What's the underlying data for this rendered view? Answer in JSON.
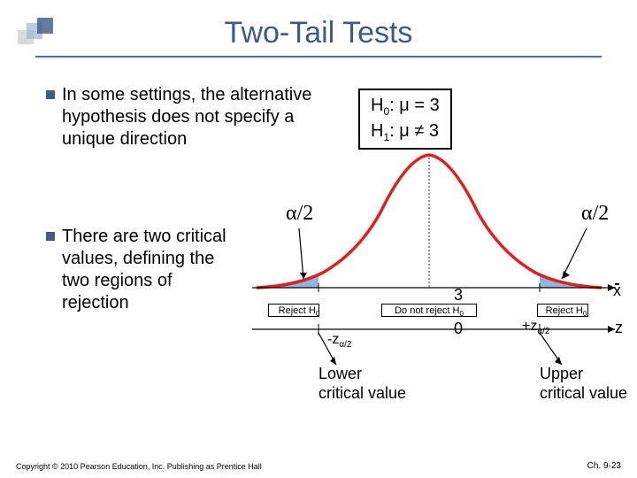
{
  "title": "Two-Tail Tests",
  "bullets": {
    "b1": "In some settings, the alternative hypothesis does not specify a unique direction",
    "b2": "There are two critical values, defining the two regions of rejection"
  },
  "hypotheses": {
    "h0_label": "H",
    "h0_sub": "0",
    "h0_text": ": μ = 3",
    "h1_label": "H",
    "h1_sub": "1",
    "h1_text": ": μ ≠ 3"
  },
  "diagram": {
    "alpha_label": "α/2",
    "center_value": "3",
    "zero_label": "0",
    "xbar_label": "x",
    "z_label": "z",
    "neg_z": "-z",
    "pos_z": "+z",
    "z_sub": "α/2",
    "reject_left": "Reject H",
    "reject_right": "Reject H",
    "reject_sub": "0",
    "do_not_reject": "Do not reject H",
    "lower_crit": "Lower critical value",
    "upper_crit": "Upper critical value",
    "curve_color": "#e02020",
    "fill_color": "#7ea6d8",
    "axis_color": "#000000"
  },
  "footer": {
    "copyright": "Copyright © 2010 Pearson Education, Inc. Publishing as Prentice Hall",
    "chapter": "Ch. 9-23"
  },
  "colors": {
    "title_color": "#3c5a8a",
    "bullet_color": "#3c5a8a"
  }
}
